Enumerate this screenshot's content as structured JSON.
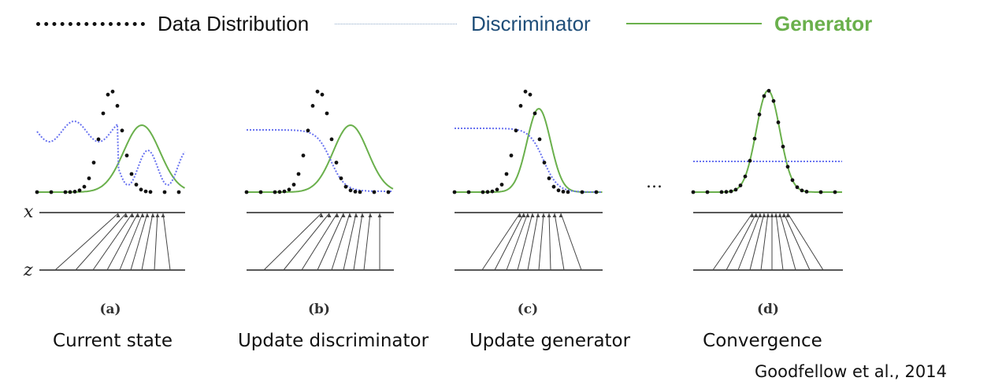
{
  "legend": {
    "data_distribution": "Data Distribution",
    "discriminator": "Discriminator",
    "generator": "Generator"
  },
  "colors": {
    "data": "#111111",
    "discriminator": "#1f4e79",
    "discriminator_curve": "#6a74f0",
    "generator": "#6ab04c",
    "axis": "#222222",
    "mapping": "#444444"
  },
  "axis_labels": {
    "x": "x",
    "z": "z"
  },
  "panels": [
    {
      "id": "a",
      "letter": "(a)",
      "caption": "Current state"
    },
    {
      "id": "b",
      "letter": "(b)",
      "caption": "Update discriminator"
    },
    {
      "id": "c",
      "letter": "(c)",
      "caption": "Update generator"
    },
    {
      "id": "d",
      "letter": "(d)",
      "caption": "Convergence"
    }
  ],
  "ellipsis": "...",
  "citation": "Goodfellow et al., 2014"
}
